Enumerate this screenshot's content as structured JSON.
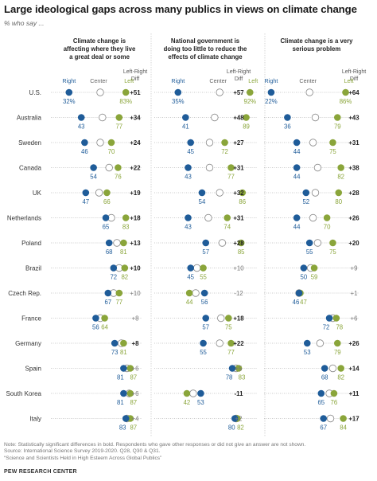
{
  "title": "Large ideological gaps across many publics in views on climate change",
  "subtitle": "% who say ...",
  "note": "Note: Statistically significant differences in bold. Respondents who gave other responses or did not give an answer are not shown.",
  "source": "Source: International Science Survey 2019-2020. Q28, Q30 & Q31.",
  "report": "“Science and Scientists Held in High Esteem Across Global Publics”",
  "org": "PEW RESEARCH CENTER",
  "colors": {
    "right": "#1f5c99",
    "center": "#ffffff",
    "left": "#8aa53a",
    "line": "#bbbbbb",
    "bold_diff": "#222222"
  },
  "chart_data": {
    "type": "dot",
    "categories": [
      "U.S.",
      "Australia",
      "Sweden",
      "Canada",
      "UK",
      "Netherlands",
      "Poland",
      "Brazil",
      "Czech Rep.",
      "France",
      "Germany",
      "Spain",
      "South Korea",
      "Italy"
    ],
    "legend": {
      "right": "Right",
      "center": "Center",
      "left": "Left"
    },
    "diff_label": [
      "Left-Right",
      "Diff"
    ],
    "panels": [
      {
        "title": [
          "Climate change is",
          "affecting where they live",
          "a great deal or some"
        ],
        "right": [
          32,
          43,
          46,
          54,
          47,
          65,
          68,
          72,
          67,
          56,
          73,
          81,
          81,
          83
        ],
        "center": [
          60,
          62,
          60,
          68,
          59,
          70,
          75,
          77,
          72,
          60,
          79,
          84,
          86,
          84
        ],
        "left": [
          83,
          77,
          70,
          76,
          66,
          83,
          81,
          82,
          77,
          64,
          81,
          87,
          87,
          87
        ],
        "diff": [
          "+51",
          "+34",
          "+24",
          "+22",
          "+19",
          "+18",
          "+13",
          "+10",
          "+10",
          "+8",
          "+8",
          "+6",
          "+6",
          "+4"
        ],
        "significant": [
          true,
          true,
          true,
          true,
          true,
          true,
          true,
          true,
          false,
          false,
          true,
          false,
          false,
          false
        ],
        "xlim": [
          20,
          100
        ]
      },
      {
        "title": [
          "National government is",
          "doing too little to reduce the",
          "effects of climate change"
        ],
        "right": [
          35,
          41,
          45,
          43,
          54,
          43,
          57,
          45,
          56,
          57,
          55,
          78,
          53,
          80
        ],
        "center": [
          68,
          64,
          60,
          60,
          68,
          59,
          70,
          50,
          49,
          69,
          68,
          81,
          47,
          81
        ],
        "left": [
          92,
          89,
          72,
          77,
          86,
          74,
          85,
          55,
          44,
          75,
          77,
          83,
          42,
          82
        ],
        "diff": [
          "+57",
          "+48",
          "+27",
          "+31",
          "+32",
          "+31",
          "+28",
          "+10",
          "-12",
          "+18",
          "+22",
          "+5",
          "-11",
          "+2"
        ],
        "significant": [
          true,
          true,
          true,
          true,
          true,
          true,
          true,
          false,
          false,
          true,
          true,
          false,
          true,
          false
        ],
        "xlim": [
          20,
          100
        ]
      },
      {
        "title": [
          "Climate change is a very",
          "serious problem"
        ],
        "right": [
          22,
          36,
          44,
          44,
          52,
          44,
          55,
          50,
          46,
          72,
          53,
          68,
          65,
          67
        ],
        "center": [
          55,
          60,
          58,
          62,
          60,
          58,
          62,
          56,
          46,
          75,
          64,
          75,
          72,
          73
        ],
        "left": [
          86,
          79,
          75,
          82,
          80,
          70,
          75,
          59,
          47,
          78,
          79,
          82,
          76,
          84
        ],
        "diff": [
          "+64",
          "+43",
          "+31",
          "+38",
          "+28",
          "+26",
          "+20",
          "+9",
          "+1",
          "+6",
          "+26",
          "+14",
          "+11",
          "+17"
        ],
        "significant": [
          true,
          true,
          true,
          true,
          true,
          true,
          true,
          false,
          false,
          false,
          true,
          true,
          true,
          true
        ],
        "xlim": [
          20,
          100
        ]
      }
    ]
  }
}
